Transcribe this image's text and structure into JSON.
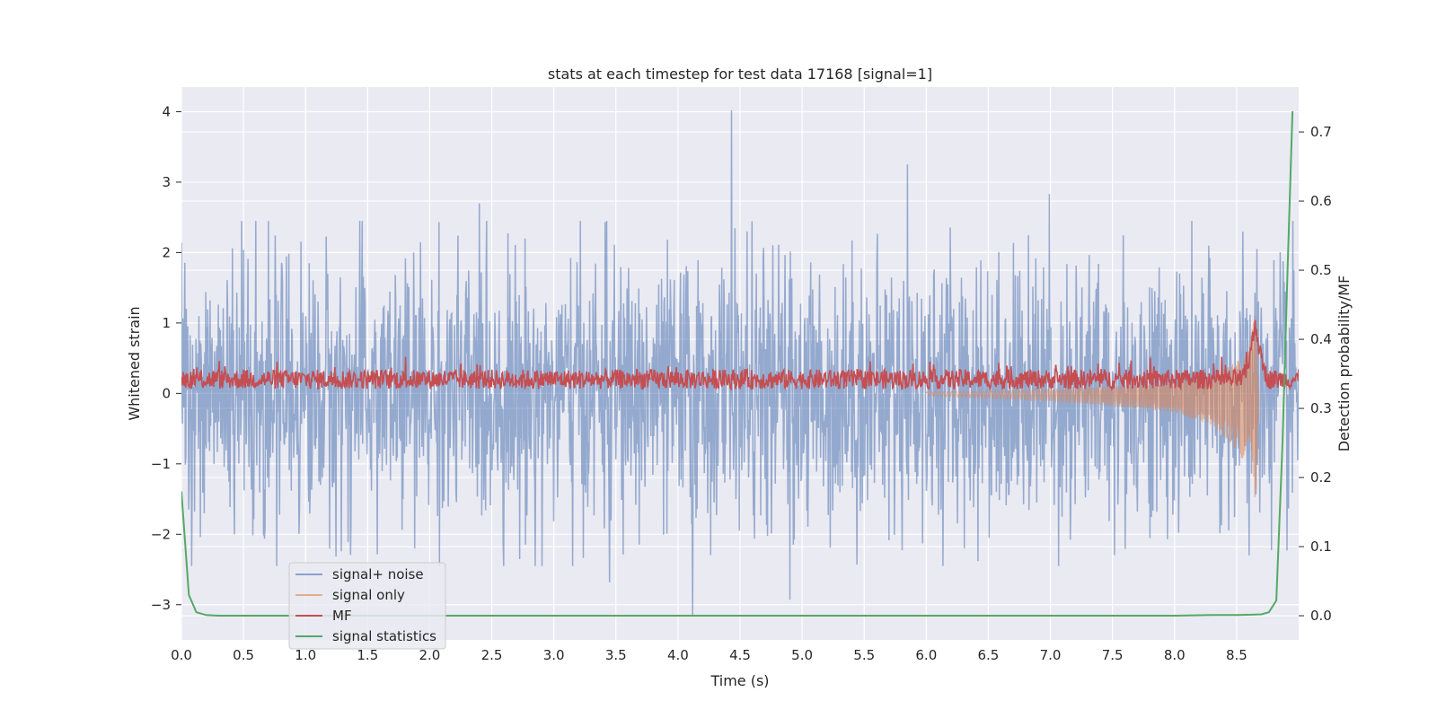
{
  "chart_data": {
    "type": "line",
    "title": "stats at each timestep for test data 17168 [signal=1]",
    "xlabel": "Time (s)",
    "ylabel": "Whitened strain",
    "ylabel_right": "Detection probability/MF",
    "xlim": [
      0.0,
      9.0
    ],
    "ylim": [
      -3.5,
      4.35
    ],
    "ylim_right": [
      -0.035,
      0.765
    ],
    "x_ticks": [
      "0.0",
      "0.5",
      "1.0",
      "1.5",
      "2.0",
      "2.5",
      "3.0",
      "3.5",
      "4.0",
      "4.5",
      "5.0",
      "5.5",
      "6.0",
      "6.5",
      "7.0",
      "7.5",
      "8.0",
      "8.5"
    ],
    "y_ticks": [
      "4",
      "3",
      "2",
      "1",
      "0",
      "−1",
      "−2",
      "−3"
    ],
    "y_tick_values": [
      4,
      3,
      2,
      1,
      0,
      -1,
      -2,
      -3
    ],
    "y_right_ticks": [
      "0.7",
      "0.6",
      "0.5",
      "0.4",
      "0.3",
      "0.2",
      "0.1",
      "0.0"
    ],
    "y_right_tick_values": [
      0.7,
      0.6,
      0.5,
      0.4,
      0.3,
      0.2,
      0.1,
      0.0
    ],
    "grid": true,
    "legend_position": "lower-left",
    "colors": {
      "signal_noise": "#4c72b0",
      "signal_only": "#dd8452",
      "mf": "#c44e52",
      "signal_statistics": "#55a868",
      "axes_bg": "#eaeaf2",
      "grid": "#ffffff"
    },
    "series": [
      {
        "name": "signal+ noise",
        "axis": "left",
        "description": "noisy whitened strain, roughly within -2.5..2.5",
        "peaks": [
          {
            "x": 4.43,
            "y": 4.02
          },
          {
            "x": 5.85,
            "y": 3.25
          },
          {
            "x": 6.99,
            "y": 2.83
          },
          {
            "x": 4.12,
            "y": -3.15
          },
          {
            "x": 4.9,
            "y": -2.93
          },
          {
            "x": 3.45,
            "y": -2.68
          },
          {
            "x": 2.4,
            "y": 2.7
          },
          {
            "x": 8.6,
            "y": -2.3
          }
        ]
      },
      {
        "name": "signal only",
        "axis": "left",
        "description": "chirp growing from ~0 at 6.0 s to about +0.6/-1.2 near 8.65 s",
        "points": [
          [
            6.0,
            0.02
          ],
          [
            7.0,
            0.06
          ],
          [
            7.5,
            0.1
          ],
          [
            8.0,
            0.15
          ],
          [
            8.3,
            0.25
          ],
          [
            8.5,
            0.45
          ],
          [
            8.6,
            0.6
          ],
          [
            8.65,
            -1.2
          ],
          [
            8.68,
            0.0
          ]
        ]
      },
      {
        "name": "MF",
        "axis": "left",
        "description": "matched filter output fluctuating between ~0.05 and 0.5, peak ~1.0 at 8.65 s",
        "baseline": 0.2,
        "peak": {
          "x": 8.65,
          "y": 1.02
        }
      },
      {
        "name": "signal statistics",
        "axis": "right",
        "points": [
          [
            0.0,
            0.18
          ],
          [
            0.06,
            0.03
          ],
          [
            0.12,
            0.005
          ],
          [
            0.2,
            0.001
          ],
          [
            0.3,
            0.0
          ],
          [
            1.0,
            0.0
          ],
          [
            4.0,
            0.0
          ],
          [
            8.0,
            0.0
          ],
          [
            8.3,
            0.001
          ],
          [
            8.5,
            0.001
          ],
          [
            8.7,
            0.002
          ],
          [
            8.76,
            0.005
          ],
          [
            8.82,
            0.022
          ],
          [
            8.87,
            0.25
          ],
          [
            8.91,
            0.5
          ],
          [
            8.95,
            0.73
          ]
        ]
      }
    ]
  }
}
